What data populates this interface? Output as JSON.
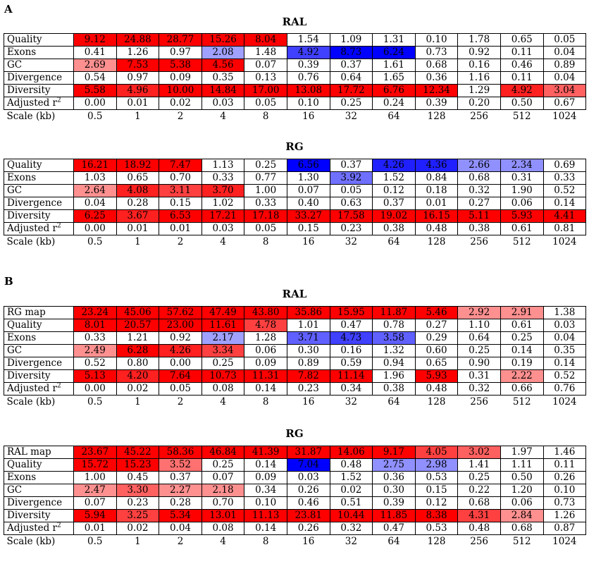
{
  "panels": [
    {
      "letter": "A",
      "tables": [
        {
          "title": "RAL",
          "rows": [
            {
              "label": "Quality",
              "values": [
                "9.12",
                "24.88",
                "28.77",
                "15.26",
                "8.04",
                "1.54",
                "1.09",
                "1.31",
                "0.10",
                "1.78",
                "0.65",
                "0.05"
              ]
            },
            {
              "label": "Exons",
              "values": [
                "0.41",
                "1.26",
                "0.97",
                "2.08",
                "1.48",
                "4.92",
                "8.73",
                "6.24",
                "0.73",
                "0.92",
                "0.11",
                "0.04"
              ]
            },
            {
              "label": "GC",
              "values": [
                "2.69",
                "7.53",
                "5.38",
                "4.56",
                "0.07",
                "0.39",
                "0.37",
                "1.61",
                "0.68",
                "0.16",
                "0.46",
                "0.89"
              ]
            },
            {
              "label": "Divergence",
              "values": [
                "0.54",
                "0.97",
                "0.09",
                "0.35",
                "0.13",
                "0.76",
                "0.64",
                "1.65",
                "0.36",
                "1.16",
                "0.11",
                "0.04"
              ]
            },
            {
              "label": "Diversity",
              "values": [
                "5.58",
                "4.96",
                "10.00",
                "14.84",
                "17.00",
                "13.08",
                "17.72",
                "6.76",
                "12.34",
                "1.29",
                "4.92",
                "3.04"
              ]
            },
            {
              "label": "Adjusted r2",
              "values": [
                "0.00",
                "0.01",
                "0.02",
                "0.03",
                "0.05",
                "0.10",
                "0.25",
                "0.24",
                "0.39",
                "0.20",
                "0.50",
                "0.67"
              ]
            }
          ],
          "cell_colors": [
            [
              "#ff0000",
              "#ff0000",
              "#ff0000",
              "#ff0000",
              "#ff0000",
              "",
              "",
              "",
              "",
              "",
              "",
              ""
            ],
            [
              "",
              "",
              "",
              "#a0a0ff",
              "",
              "#4040ff",
              "#0000ff",
              "#0000ff",
              "",
              "",
              "",
              ""
            ],
            [
              "#ff9090",
              "#ff0000",
              "#ff0000",
              "#ff0000",
              "",
              "",
              "",
              "",
              "",
              "",
              "",
              ""
            ],
            [
              "",
              "",
              "",
              "",
              "",
              "",
              "",
              "",
              "",
              "",
              "",
              ""
            ],
            [
              "#ff0000",
              "#ff2020",
              "#ff0000",
              "#ff0000",
              "#ff0000",
              "#ff0000",
              "#ff0000",
              "#ff0000",
              "#ff0000",
              "",
              "#ff2020",
              "#ff6060"
            ],
            [
              "",
              "",
              "",
              "",
              "",
              "",
              "",
              "",
              "",
              "",
              "",
              ""
            ]
          ]
        },
        {
          "title": "RG",
          "rows": [
            {
              "label": "Quality",
              "values": [
                "16.21",
                "18.92",
                "7.47",
                "1.13",
                "0.25",
                "6.56",
                "0.37",
                "4.26",
                "4.36",
                "2.66",
                "2.34",
                "0.69"
              ]
            },
            {
              "label": "Exons",
              "values": [
                "1.03",
                "0.65",
                "0.70",
                "0.33",
                "0.77",
                "1.30",
                "3.92",
                "1.52",
                "0.84",
                "0.68",
                "0.31",
                "0.33"
              ]
            },
            {
              "label": "GC",
              "values": [
                "2.64",
                "4.08",
                "3.11",
                "3.70",
                "1.00",
                "0.07",
                "0.05",
                "0.12",
                "0.18",
                "0.32",
                "1.90",
                "0.52"
              ]
            },
            {
              "label": "Divergence",
              "values": [
                "0.04",
                "0.28",
                "0.15",
                "1.02",
                "0.33",
                "0.40",
                "0.63",
                "0.37",
                "0.01",
                "0.27",
                "0.06",
                "0.14"
              ]
            },
            {
              "label": "Diversity",
              "values": [
                "6.25",
                "3.67",
                "6.53",
                "17.21",
                "17.18",
                "33.27",
                "17.58",
                "19.02",
                "16.15",
                "5.11",
                "5.93",
                "4.41"
              ]
            },
            {
              "label": "Adjusted r2",
              "values": [
                "0.00",
                "0.01",
                "0.01",
                "0.03",
                "0.05",
                "0.15",
                "0.23",
                "0.38",
                "0.48",
                "0.38",
                "0.61",
                "0.81"
              ]
            }
          ],
          "cell_colors": [
            [
              "#ff0000",
              "#ff0000",
              "#ff0000",
              "",
              "",
              "#0000ff",
              "",
              "#2020ff",
              "#2020ff",
              "#9090ff",
              "#9090ff",
              ""
            ],
            [
              "",
              "",
              "",
              "",
              "",
              "",
              "#7070ff",
              "",
              "",
              "",
              "",
              ""
            ],
            [
              "#ff9090",
              "#ff2020",
              "#ff4040",
              "#ff2020",
              "",
              "",
              "",
              "",
              "",
              "",
              "",
              ""
            ],
            [
              "",
              "",
              "",
              "",
              "",
              "",
              "",
              "",
              "",
              "",
              "",
              ""
            ],
            [
              "#ff0000",
              "#ff2020",
              "#ff0000",
              "#ff0000",
              "#ff0000",
              "#ff0000",
              "#ff0000",
              "#ff0000",
              "#ff0000",
              "#ff0000",
              "#ff0000",
              "#ff0000"
            ],
            [
              "",
              "",
              "",
              "",
              "",
              "",
              "",
              "",
              "",
              "",
              "",
              ""
            ]
          ]
        }
      ]
    },
    {
      "letter": "B",
      "tables": [
        {
          "title": "RAL",
          "rows": [
            {
              "label": "RG map",
              "values": [
                "23.24",
                "45.06",
                "57.62",
                "47.49",
                "43.80",
                "35.86",
                "15.95",
                "11.87",
                "5.46",
                "2.92",
                "2.91",
                "1.38"
              ]
            },
            {
              "label": "Quality",
              "values": [
                "8.01",
                "20.57",
                "23.00",
                "11.61",
                "4.78",
                "1.01",
                "0.47",
                "0.78",
                "0.27",
                "1.10",
                "0.61",
                "0.03"
              ]
            },
            {
              "label": "Exons",
              "values": [
                "0.33",
                "1.21",
                "0.92",
                "2.17",
                "1.28",
                "3.71",
                "4.73",
                "3.58",
                "0.29",
                "0.64",
                "0.25",
                "0.04"
              ]
            },
            {
              "label": "GC",
              "values": [
                "2.49",
                "6.28",
                "4.26",
                "3.34",
                "0.06",
                "0.30",
                "0.16",
                "1.32",
                "0.60",
                "0.25",
                "0.14",
                "0.35"
              ]
            },
            {
              "label": "Divergence",
              "values": [
                "0.52",
                "0.80",
                "0.00",
                "0.25",
                "0.09",
                "0.89",
                "0.59",
                "0.94",
                "0.65",
                "0.90",
                "0.19",
                "0.14"
              ]
            },
            {
              "label": "Diversity",
              "values": [
                "5.13",
                "4.20",
                "7.64",
                "10.73",
                "11.31",
                "7.82",
                "11.14",
                "1.96",
                "5.93",
                "0.31",
                "2.22",
                "0.52"
              ]
            },
            {
              "label": "Adjusted r2",
              "values": [
                "0.00",
                "0.02",
                "0.05",
                "0.08",
                "0.14",
                "0.23",
                "0.34",
                "0.38",
                "0.48",
                "0.32",
                "0.66",
                "0.76"
              ]
            }
          ],
          "cell_colors": [
            [
              "#ff0000",
              "#ff0000",
              "#ff0000",
              "#ff0000",
              "#ff0000",
              "#ff0000",
              "#ff0000",
              "#ff0000",
              "#ff0000",
              "#ff9090",
              "#ff9090",
              ""
            ],
            [
              "#ff0000",
              "#ff0000",
              "#ff0000",
              "#ff0000",
              "#ff4040",
              "",
              "",
              "",
              "",
              "",
              "",
              ""
            ],
            [
              "",
              "",
              "",
              "#a0a0ff",
              "",
              "#6060ff",
              "#4040ff",
              "#6060ff",
              "",
              "",
              "",
              ""
            ],
            [
              "#ff9090",
              "#ff0000",
              "#ff2020",
              "#ff4040",
              "",
              "",
              "",
              "",
              "",
              "",
              "",
              ""
            ],
            [
              "",
              "",
              "",
              "",
              "",
              "",
              "",
              "",
              "",
              "",
              "",
              ""
            ],
            [
              "#ff0000",
              "#ff2020",
              "#ff0000",
              "#ff0000",
              "#ff0000",
              "#ff0000",
              "#ff0000",
              "",
              "#ff0000",
              "",
              "#ff9090",
              ""
            ],
            [
              "",
              "",
              "",
              "",
              "",
              "",
              "",
              "",
              "",
              "",
              "",
              ""
            ]
          ]
        },
        {
          "title": "RG",
          "rows": [
            {
              "label": "RAL map",
              "values": [
                "23.67",
                "45.22",
                "58.36",
                "46.84",
                "41.39",
                "31.87",
                "14.06",
                "9.17",
                "4.05",
                "3.02",
                "1.97",
                "1.46"
              ]
            },
            {
              "label": "Quality",
              "values": [
                "15.72",
                "15.23",
                "3.52",
                "0.25",
                "0.14",
                "7.04",
                "0.48",
                "2.75",
                "2.98",
                "1.41",
                "1.11",
                "0.11"
              ]
            },
            {
              "label": "Exons",
              "values": [
                "1.00",
                "0.45",
                "0.37",
                "0.07",
                "0.09",
                "0.03",
                "1.52",
                "0.36",
                "0.53",
                "0.25",
                "0.50",
                "0.26"
              ]
            },
            {
              "label": "GC",
              "values": [
                "2.47",
                "3.30",
                "2.27",
                "2.18",
                "0.34",
                "0.26",
                "0.02",
                "0.30",
                "0.15",
                "0.22",
                "1.20",
                "0.10"
              ]
            },
            {
              "label": "Divergence",
              "values": [
                "0.07",
                "0.23",
                "0.28",
                "0.70",
                "0.10",
                "0.46",
                "0.51",
                "0.39",
                "0.12",
                "0.68",
                "0.06",
                "0.73"
              ]
            },
            {
              "label": "Diversity",
              "values": [
                "5.94",
                "3.25",
                "5.34",
                "13.01",
                "11.13",
                "23.81",
                "10.44",
                "11.85",
                "8.38",
                "4.31",
                "2.84",
                "1.26"
              ]
            },
            {
              "label": "Adjusted r2",
              "values": [
                "0.01",
                "0.02",
                "0.04",
                "0.08",
                "0.14",
                "0.26",
                "0.32",
                "0.47",
                "0.53",
                "0.48",
                "0.68",
                "0.87"
              ]
            }
          ],
          "cell_colors": [
            [
              "#ff0000",
              "#ff0000",
              "#ff0000",
              "#ff0000",
              "#ff0000",
              "#ff0000",
              "#ff0000",
              "#ff0000",
              "#ff4040",
              "#ff6060",
              "",
              ""
            ],
            [
              "#ff0000",
              "#ff0000",
              "#ff7070",
              "",
              "",
              "#0000ff",
              "",
              "#9090ff",
              "#9090ff",
              "",
              "",
              ""
            ],
            [
              "",
              "",
              "",
              "",
              "",
              "",
              "",
              "",
              "",
              "",
              "",
              ""
            ],
            [
              "#ff9090",
              "#ff6060",
              "#ff9090",
              "#ff9090",
              "",
              "",
              "",
              "",
              "",
              "",
              "",
              ""
            ],
            [
              "",
              "",
              "",
              "",
              "",
              "",
              "",
              "",
              "",
              "",
              "",
              ""
            ],
            [
              "#ff0000",
              "#ff4040",
              "#ff0000",
              "#ff0000",
              "#ff0000",
              "#ff0000",
              "#ff0000",
              "#ff0000",
              "#ff0000",
              "#ff4040",
              "#ff9090",
              ""
            ],
            [
              "",
              "",
              "",
              "",
              "",
              "",
              "",
              "",
              "",
              "",
              "",
              ""
            ]
          ]
        }
      ]
    }
  ],
  "scale_label": "Scale (kb)",
  "scales": [
    "0.5",
    "1",
    "2",
    "4",
    "8",
    "16",
    "32",
    "64",
    "128",
    "256",
    "512",
    "1024"
  ]
}
